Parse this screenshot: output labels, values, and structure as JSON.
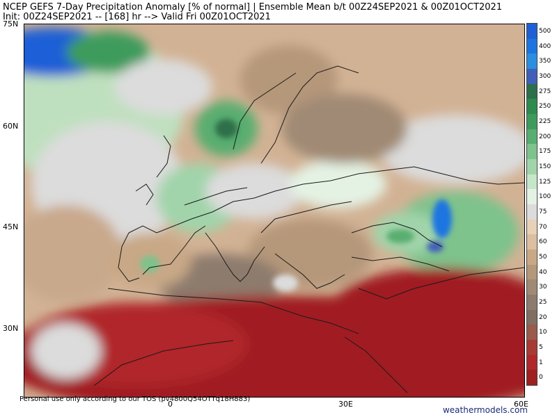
{
  "header": {
    "title_line1": "NCEP GEFS 7-Day Precipitation Anomaly [% of normal] | Ensemble Mean b/t 00Z24SEP2021 & 00Z01OCT2021",
    "title_line2": "Init: 00Z24SEP2021 -- [168] hr --> Valid Fri 00Z01OCT2021"
  },
  "map": {
    "lat_labels": [
      "75N",
      "60N",
      "45N",
      "30N"
    ],
    "lon_labels": [
      "0",
      "30E",
      "60E"
    ],
    "region": "Europe, North Africa and Middle East"
  },
  "colorbar": {
    "levels": [
      "500",
      "400",
      "350",
      "300",
      "275",
      "250",
      "225",
      "200",
      "175",
      "150",
      "125",
      "100",
      "75",
      "70",
      "60",
      "50",
      "40",
      "30",
      "25",
      "20",
      "10",
      "5",
      "1",
      "0"
    ],
    "colors": [
      "#1f5fd6",
      "#1c74e0",
      "#2a8fe0",
      "#3f5fb8",
      "#2d6f4a",
      "#2e8a4e",
      "#3e9b5c",
      "#58ad70",
      "#7ec28c",
      "#a1d4aa",
      "#c5e6c9",
      "#e4f2e4",
      "#dcdcdc",
      "#e7d1b8",
      "#dcbfa0",
      "#c8a886",
      "#b5977a",
      "#a08a75",
      "#8d7c6d",
      "#7e6f62",
      "#9a5a4c",
      "#a83a34",
      "#b0282a",
      "#a01f20"
    ]
  },
  "footer": {
    "credit": "Personal use only according to our TOS (pv4800Q54OTTq18H883)",
    "brand": "weathermodels.com"
  }
}
